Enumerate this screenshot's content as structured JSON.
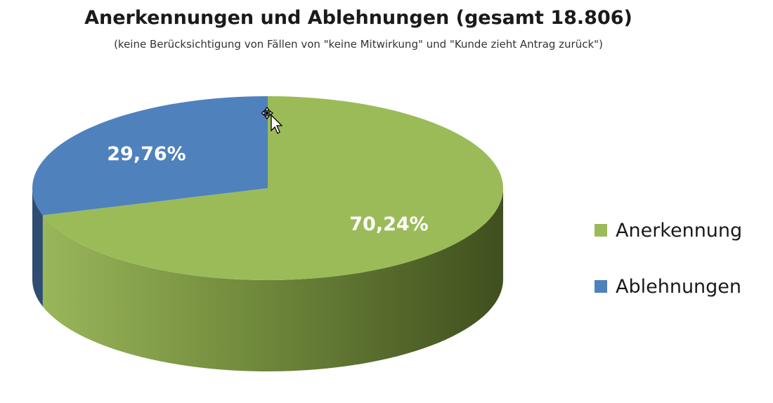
{
  "chart_data": {
    "type": "pie",
    "title": "Anerkennungen und Ablehnungen (gesamt 18.806)",
    "subtitle": "(keine Berücksichtigung von Fällen von \"keine Mitwirkung\" und \"Kunde zieht Antrag zurück\")",
    "three_d": true,
    "legend_position": "right",
    "slices": [
      {
        "name": "Anerkennung",
        "value": 70.24,
        "label": "70,24%",
        "color": "#9bbb59"
      },
      {
        "name": "Ablehnungen",
        "value": 29.76,
        "label": "29,76%",
        "color": "#4f81bd"
      }
    ]
  }
}
